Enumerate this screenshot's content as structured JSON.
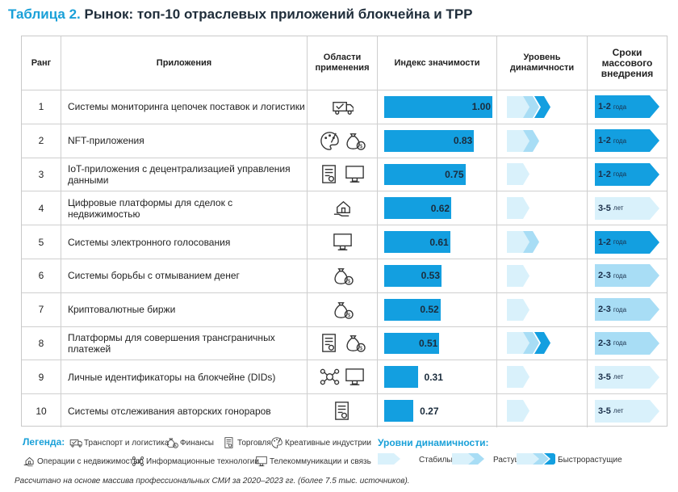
{
  "title": {
    "number": "Таблица 2.",
    "text": "Рынок: топ-10 отраслевых приложений блокчейна и ТРР"
  },
  "columns": {
    "rank": "Ранг",
    "app": "Приложения",
    "area": "Области применения",
    "index": "Индекс значимости",
    "dynamics": "Уровень динамичности",
    "timing": "Сроки массового внедрения"
  },
  "rows": [
    {
      "rank": "1",
      "app": "Системы мониторинга цепочек поставок и логистики",
      "icons": [
        "truck-icon"
      ],
      "index": 1.0,
      "index_label": "1.00",
      "dynamics": "fast",
      "timing_num": "1-2",
      "timing_unit": "года"
    },
    {
      "rank": "2",
      "app": "NFT-приложения",
      "icons": [
        "palette-icon",
        "money-bag-icon"
      ],
      "index": 0.83,
      "index_label": "0.83",
      "dynamics": "growing",
      "timing_num": "1-2",
      "timing_unit": "года"
    },
    {
      "rank": "3",
      "app": "IoT-приложения с децентрализацией управления данными",
      "icons": [
        "document-icon",
        "monitor-icon"
      ],
      "index": 0.75,
      "index_label": "0.75",
      "dynamics": "stable",
      "timing_num": "1-2",
      "timing_unit": "года"
    },
    {
      "rank": "4",
      "app": "Цифровые платформы для сделок с недвижимостью",
      "icons": [
        "house-hand-icon"
      ],
      "index": 0.62,
      "index_label": "0.62",
      "dynamics": "stable",
      "timing_num": "3-5",
      "timing_unit": "лет"
    },
    {
      "rank": "5",
      "app": "Системы электронного голосования",
      "icons": [
        "monitor-icon"
      ],
      "index": 0.61,
      "index_label": "0.61",
      "dynamics": "growing",
      "timing_num": "1-2",
      "timing_unit": "года"
    },
    {
      "rank": "6",
      "app": "Системы борьбы с отмыванием денег",
      "icons": [
        "money-bag-icon"
      ],
      "index": 0.53,
      "index_label": "0.53",
      "dynamics": "stable",
      "timing_num": "2-3",
      "timing_unit": "года"
    },
    {
      "rank": "7",
      "app": "Криптовалютные биржи",
      "icons": [
        "money-bag-icon"
      ],
      "index": 0.52,
      "index_label": "0.52",
      "dynamics": "stable",
      "timing_num": "2-3",
      "timing_unit": "года"
    },
    {
      "rank": "8",
      "app": "Платформы для совершения трансграничных платежей",
      "icons": [
        "document-icon",
        "money-bag-icon"
      ],
      "index": 0.51,
      "index_label": "0.51",
      "dynamics": "fast",
      "timing_num": "2-3",
      "timing_unit": "года"
    },
    {
      "rank": "9",
      "app": "Личные идентификаторы на блокчейне (DIDs)",
      "icons": [
        "network-icon",
        "monitor-icon"
      ],
      "index": 0.31,
      "index_label": "0.31",
      "dynamics": "stable",
      "timing_num": "3-5",
      "timing_unit": "лет"
    },
    {
      "rank": "10",
      "app": "Системы отслеживания авторских гонораров",
      "icons": [
        "document-icon"
      ],
      "index": 0.27,
      "index_label": "0.27",
      "dynamics": "stable",
      "timing_num": "3-5",
      "timing_unit": "лет"
    }
  ],
  "timing_colors": {
    "1-2": "#139fe0",
    "2-3": "#a8ddf5",
    "3-5": "#d9f1fb"
  },
  "legend": {
    "title": "Легенда:",
    "items": [
      {
        "icon": "truck-icon",
        "label": "Транспорт и логистика"
      },
      {
        "icon": "money-bag-icon",
        "label": "Финансы"
      },
      {
        "icon": "document-icon",
        "label": "Торговля"
      },
      {
        "icon": "palette-icon",
        "label": "Креативные индустрии"
      },
      {
        "icon": "house-hand-icon",
        "label": "Операции с недвижимостью"
      },
      {
        "icon": "network-icon",
        "label": "Информационные технологии"
      },
      {
        "icon": "monitor-icon",
        "label": "Телекоммуникации и связь"
      }
    ]
  },
  "dynamics_legend": {
    "title": "Уровни динамичности:",
    "stable": "Стабильные",
    "growing": "Растущие",
    "fast": "Быстрорастущие"
  },
  "footnote": "Рассчитано на основе массива профессиональных СМИ за 2020–2023 гг. (более 7.5 тыс. источников).",
  "colors": {
    "accent": "#19a0d8",
    "bar": "#139fe0"
  }
}
